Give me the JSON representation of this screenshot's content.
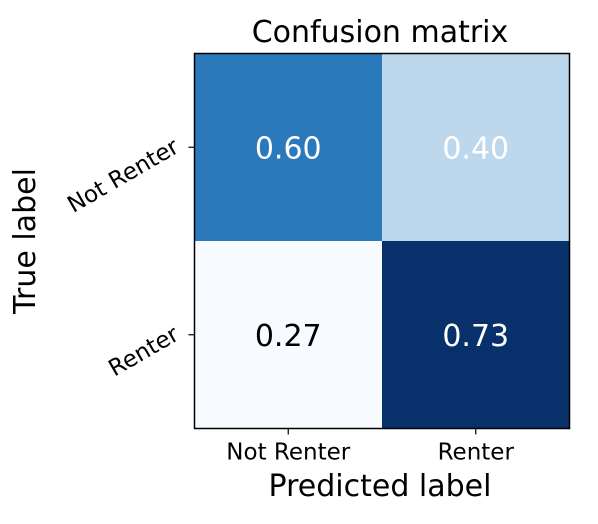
{
  "chart_data": {
    "type": "heatmap",
    "title": "Confusion matrix",
    "xlabel": "Predicted label",
    "ylabel": "True label",
    "x_categories": [
      "Not Renter",
      "Renter"
    ],
    "y_categories": [
      "Not Renter",
      "Renter"
    ],
    "values": [
      [
        "0.60",
        "0.40"
      ],
      [
        "0.27",
        "0.73"
      ]
    ],
    "value_range": [
      0,
      1
    ],
    "colormap": "Blues",
    "cell_colors": [
      [
        "#2a79bb",
        "#bdd7ec"
      ],
      [
        "#f7fbff",
        "#08306b"
      ]
    ],
    "text_colors": [
      [
        "#ffffff",
        "#ffffff"
      ],
      [
        "#000000",
        "#ffffff"
      ]
    ],
    "frame_color": "#000000",
    "grid": false
  }
}
